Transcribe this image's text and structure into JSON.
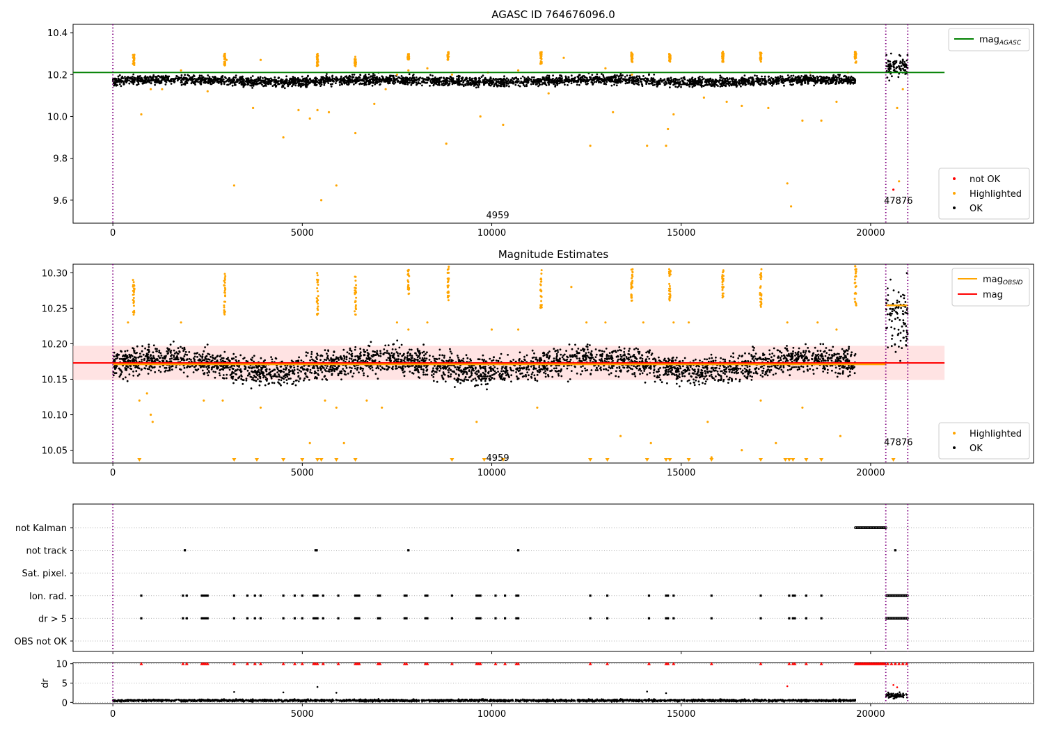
{
  "colors": {
    "ok": "#000000",
    "highlighted": "#ffa500",
    "not_ok": "#ff0000",
    "agasc_line": "#008000",
    "mag_line": "#ff0000",
    "mag_obsid": "#ffa500",
    "obs_boundary": "#800080",
    "band": "#ffcccc"
  },
  "chart_data": [
    {
      "type": "scatter",
      "title": "AGASC ID 764676096.0",
      "xlim": [
        -1050,
        24300
      ],
      "ylim": [
        9.49,
        10.44
      ],
      "xticks": [
        0,
        5000,
        10000,
        15000,
        20000
      ],
      "yticks": [
        9.6,
        9.8,
        10.0,
        10.2,
        10.4
      ],
      "grid": false,
      "legend_lines": {
        "placement": "top-right",
        "entries": [
          {
            "label": "mag",
            "sub": "AGASC",
            "color": "#008000"
          }
        ]
      },
      "legend_points": {
        "placement": "bottom-right",
        "entries": [
          {
            "label": "not OK",
            "color": "#ff0000"
          },
          {
            "label": "Highlighted",
            "color": "#ffa500"
          },
          {
            "label": "OK",
            "color": "#000000"
          }
        ]
      },
      "obs_labels": [
        {
          "text": "4959",
          "x": 10000,
          "y": 9.53
        },
        {
          "text": "47876",
          "x": 20500,
          "y": 9.6
        }
      ],
      "boundaries": [
        0,
        20400,
        20980
      ],
      "series": [
        {
          "name": "mag AGASC",
          "kind": "hline",
          "y": 10.21,
          "xrange": [
            -1050,
            21950
          ]
        },
        {
          "name": "OK observation 4959",
          "kind": "band",
          "x_range": [
            0,
            19600
          ],
          "y_center": 10.17,
          "y_spread": 0.04
        },
        {
          "name": "OK observation 47876",
          "kind": "band",
          "x_range": [
            20400,
            20980
          ],
          "y_center": 10.25,
          "y_spread": 0.09
        },
        {
          "name": "Highlighted",
          "kind": "points",
          "x": [
            750,
            1000,
            1300,
            1800,
            2500,
            3000,
            3200,
            3700,
            3900,
            4500,
            4900,
            5200,
            5400,
            5500,
            5700,
            5900,
            6400,
            6900,
            7200,
            7500,
            7800,
            8300,
            8800,
            8950,
            9700,
            9900,
            10300,
            10700,
            11500,
            11900,
            12600,
            13000,
            13200,
            13700,
            14100,
            14600,
            14650,
            14800,
            15600,
            16200,
            16600,
            17100,
            17300,
            17800,
            17900,
            18200,
            18400,
            18700,
            19100,
            19400,
            20700,
            20750,
            20850
          ],
          "y": [
            10.01,
            10.13,
            10.13,
            10.22,
            10.12,
            10.27,
            9.67,
            10.04,
            10.27,
            9.9,
            10.03,
            9.99,
            10.03,
            9.6,
            10.02,
            9.67,
            9.92,
            10.06,
            10.13,
            10.2,
            10.22,
            10.23,
            9.87,
            10.2,
            10.0,
            10.21,
            9.96,
            10.22,
            10.11,
            10.28,
            9.86,
            10.23,
            10.02,
            10.2,
            9.86,
            9.86,
            9.94,
            10.01,
            10.09,
            10.07,
            10.05,
            10.29,
            10.04,
            9.68,
            9.57,
            9.98,
            10.21,
            9.98,
            10.07,
            10.21,
            10.04,
            9.69,
            10.13
          ]
        },
        {
          "name": "Highlighted clusters",
          "kind": "clusters",
          "x": [
            550,
            2950,
            5400,
            6400,
            7800,
            8850,
            11300,
            13700,
            14700,
            16100,
            17100,
            19600
          ],
          "y_lo": [
            10.24,
            10.24,
            10.24,
            10.24,
            10.27,
            10.27,
            10.25,
            10.26,
            10.26,
            10.26,
            10.26,
            10.25
          ],
          "y_hi": [
            10.3,
            10.3,
            10.3,
            10.29,
            10.3,
            10.31,
            10.31,
            10.31,
            10.3,
            10.31,
            10.31,
            10.31
          ]
        },
        {
          "name": "not OK",
          "kind": "points",
          "x": [
            20600
          ],
          "y": [
            9.65
          ]
        }
      ]
    },
    {
      "type": "scatter",
      "title": "Magnitude Estimates",
      "xlim": [
        -1050,
        24300
      ],
      "ylim": [
        10.032,
        10.312
      ],
      "xticks": [
        0,
        5000,
        10000,
        15000,
        20000
      ],
      "yticks": [
        10.05,
        10.1,
        10.15,
        10.2,
        10.25,
        10.3
      ],
      "grid": false,
      "legend_lines": {
        "placement": "top-right",
        "entries": [
          {
            "label": "mag",
            "sub": "OBSID",
            "color": "#ffa500"
          },
          {
            "label": "mag",
            "sub": "",
            "color": "#ff0000"
          }
        ]
      },
      "legend_points": {
        "placement": "bottom-right",
        "entries": [
          {
            "label": "Highlighted",
            "color": "#ffa500"
          },
          {
            "label": "OK",
            "color": "#000000"
          }
        ]
      },
      "obs_labels": [
        {
          "text": "4959",
          "x": 10000,
          "y": 10.04
        },
        {
          "text": "47876",
          "x": 20500,
          "y": 10.062
        }
      ],
      "boundaries": [
        0,
        20400,
        20980
      ],
      "series": [
        {
          "name": "mag",
          "kind": "hline",
          "y": 10.173,
          "xrange": [
            -1050,
            21950
          ]
        },
        {
          "name": "mag band",
          "kind": "shade",
          "y_lo": 10.149,
          "y_hi": 10.197,
          "xrange": [
            -1050,
            21950
          ]
        },
        {
          "name": "mag OBSID 4959",
          "kind": "segment",
          "y": 10.171,
          "x_range": [
            0,
            20400
          ]
        },
        {
          "name": "mag OBSID 47876",
          "kind": "segment",
          "y": 10.254,
          "x_range": [
            20400,
            20980
          ]
        },
        {
          "name": "OK observation 4959",
          "kind": "band",
          "x_range": [
            0,
            19600
          ],
          "y_center": 10.17,
          "y_spread": 0.035
        },
        {
          "name": "OK observation 47876",
          "kind": "band",
          "x_range": [
            20400,
            20980
          ],
          "y_center": 10.255,
          "y_spread": 0.08
        },
        {
          "name": "Highlighted",
          "kind": "points",
          "x": [
            400,
            700,
            900,
            1000,
            1050,
            1800,
            2400,
            2900,
            3900,
            5200,
            5600,
            5900,
            6100,
            6700,
            7100,
            7500,
            7800,
            8300,
            9600,
            10000,
            10700,
            11200,
            12100,
            12500,
            13000,
            13400,
            14000,
            14200,
            14800,
            15200,
            15700,
            15800,
            16600,
            17100,
            17500,
            17800,
            18200,
            18600,
            19100,
            19200
          ],
          "y": [
            10.23,
            10.12,
            10.13,
            10.1,
            10.09,
            10.23,
            10.12,
            10.12,
            10.11,
            10.06,
            10.12,
            10.11,
            10.06,
            10.12,
            10.11,
            10.23,
            10.22,
            10.23,
            10.09,
            10.22,
            10.22,
            10.11,
            10.28,
            10.23,
            10.23,
            10.07,
            10.23,
            10.06,
            10.23,
            10.23,
            10.09,
            10.04,
            10.05,
            10.12,
            10.06,
            10.23,
            10.11,
            10.23,
            10.22,
            10.07
          ]
        },
        {
          "name": "Highlighted clusters",
          "kind": "clusters",
          "x": [
            550,
            2950,
            5400,
            6400,
            7800,
            8850,
            11300,
            13700,
            14700,
            16100,
            17100,
            19600
          ],
          "y_lo": [
            10.24,
            10.24,
            10.24,
            10.24,
            10.27,
            10.26,
            10.25,
            10.26,
            10.26,
            10.26,
            10.25,
            10.25
          ],
          "y_hi": [
            10.29,
            10.3,
            10.3,
            10.3,
            10.305,
            10.31,
            10.305,
            10.305,
            10.305,
            10.31,
            10.305,
            10.31
          ]
        },
        {
          "name": "Clipped highlighted",
          "kind": "floor",
          "x": [
            700,
            3200,
            3800,
            4500,
            5000,
            5400,
            5500,
            5900,
            6400,
            8950,
            9800,
            10300,
            12600,
            13050,
            14100,
            14600,
            14700,
            15200,
            15800,
            17100,
            17750,
            17850,
            17950,
            18300,
            18700,
            20600
          ]
        }
      ]
    },
    {
      "type": "scatter",
      "title": "",
      "xlim": [
        -1050,
        24300
      ],
      "xticks": [
        0,
        5000,
        10000,
        15000,
        20000
      ],
      "categories": [
        "not Kalman",
        "not track",
        "Sat. pixel.",
        "Ion. rad.",
        "dr > 5",
        "OBS not OK"
      ],
      "boundaries": [
        0,
        20400,
        20980
      ],
      "series": [
        {
          "name": "not Kalman",
          "kind": "flags",
          "x": [],
          "segments": [
            [
              19600,
              20400
            ]
          ]
        },
        {
          "name": "not track",
          "kind": "flags",
          "x": [
            1900,
            5350,
            5380,
            7800,
            10700,
            20650
          ],
          "segments": []
        },
        {
          "name": "Sat. pixel.",
          "kind": "flags",
          "x": [],
          "segments": []
        },
        {
          "name": "Ion. rad.",
          "kind": "flags",
          "x": [
            750,
            1850,
            1950,
            2350,
            2400,
            2450,
            2500,
            3200,
            3550,
            3750,
            3900,
            4500,
            4800,
            5000,
            5300,
            5350,
            5400,
            5550,
            5950,
            6400,
            6450,
            6500,
            7000,
            7050,
            7700,
            7750,
            8250,
            8300,
            8950,
            9600,
            9650,
            9700,
            10100,
            10350,
            10650,
            10700,
            12600,
            13050,
            14150,
            14600,
            14650,
            14800,
            15800,
            17100,
            17850,
            17950,
            18000,
            18300,
            18700
          ],
          "segments": [
            [
              20420,
              20980
            ]
          ]
        },
        {
          "name": "dr > 5",
          "kind": "flags",
          "x": [
            750,
            1850,
            1950,
            2350,
            2400,
            2450,
            2500,
            3200,
            3550,
            3750,
            3900,
            4500,
            4800,
            5000,
            5300,
            5350,
            5400,
            5550,
            5950,
            6400,
            6450,
            6500,
            7000,
            7050,
            7700,
            7750,
            8250,
            8300,
            8950,
            9600,
            9650,
            9700,
            10100,
            10350,
            10650,
            10700,
            12600,
            13050,
            14150,
            14600,
            14650,
            14800,
            15800,
            17100,
            17850,
            17950,
            18000,
            18300,
            18700
          ],
          "segments": [
            [
              20420,
              20980
            ]
          ]
        },
        {
          "name": "OBS not OK",
          "kind": "flags",
          "x": [],
          "segments": []
        }
      ]
    },
    {
      "type": "scatter",
      "title": "",
      "ylabel": "dr",
      "xlim": [
        -1050,
        24300
      ],
      "ylim": [
        -0.3,
        10.3
      ],
      "xticks": [
        0,
        5000,
        10000,
        15000,
        20000
      ],
      "xticklabels": [
        "0",
        "5000",
        "10000",
        "15000",
        "20000"
      ],
      "yticks": [
        0,
        5,
        10
      ],
      "boundaries": [
        0,
        20400,
        20980
      ],
      "series": [
        {
          "name": "dr OK 4959",
          "kind": "band",
          "x_range": [
            0,
            19600
          ],
          "y_center": 0.5,
          "y_spread": 0.45
        },
        {
          "name": "dr OK 47876",
          "kind": "band",
          "x_range": [
            20400,
            20980
          ],
          "y_center": 1.8,
          "y_spread": 1.3
        },
        {
          "name": "dr capped",
          "kind": "caps",
          "x": [
            750,
            1850,
            1950,
            2350,
            2400,
            2450,
            2500,
            3200,
            3550,
            3750,
            3900,
            4500,
            4800,
            5000,
            5300,
            5350,
            5400,
            5550,
            5950,
            6400,
            6450,
            6500,
            7000,
            7050,
            7700,
            7750,
            8250,
            8300,
            8950,
            9600,
            9650,
            9700,
            10100,
            10350,
            10650,
            10700,
            12600,
            13050,
            14150,
            14600,
            14650,
            14800,
            15800,
            17100,
            17850,
            17950,
            18000,
            18300,
            18700,
            20450,
            20550,
            20650,
            20750,
            20850,
            20950
          ],
          "segments": [
            [
              19600,
              20400
            ]
          ]
        },
        {
          "name": "dr outliers",
          "kind": "points",
          "x": [
            3200,
            4500,
            5400,
            5900,
            14100,
            14600,
            17800,
            20600,
            20700
          ],
          "y": [
            2.7,
            2.6,
            4.0,
            2.5,
            2.8,
            2.4,
            4.2,
            4.5,
            3.9
          ]
        }
      ]
    }
  ]
}
